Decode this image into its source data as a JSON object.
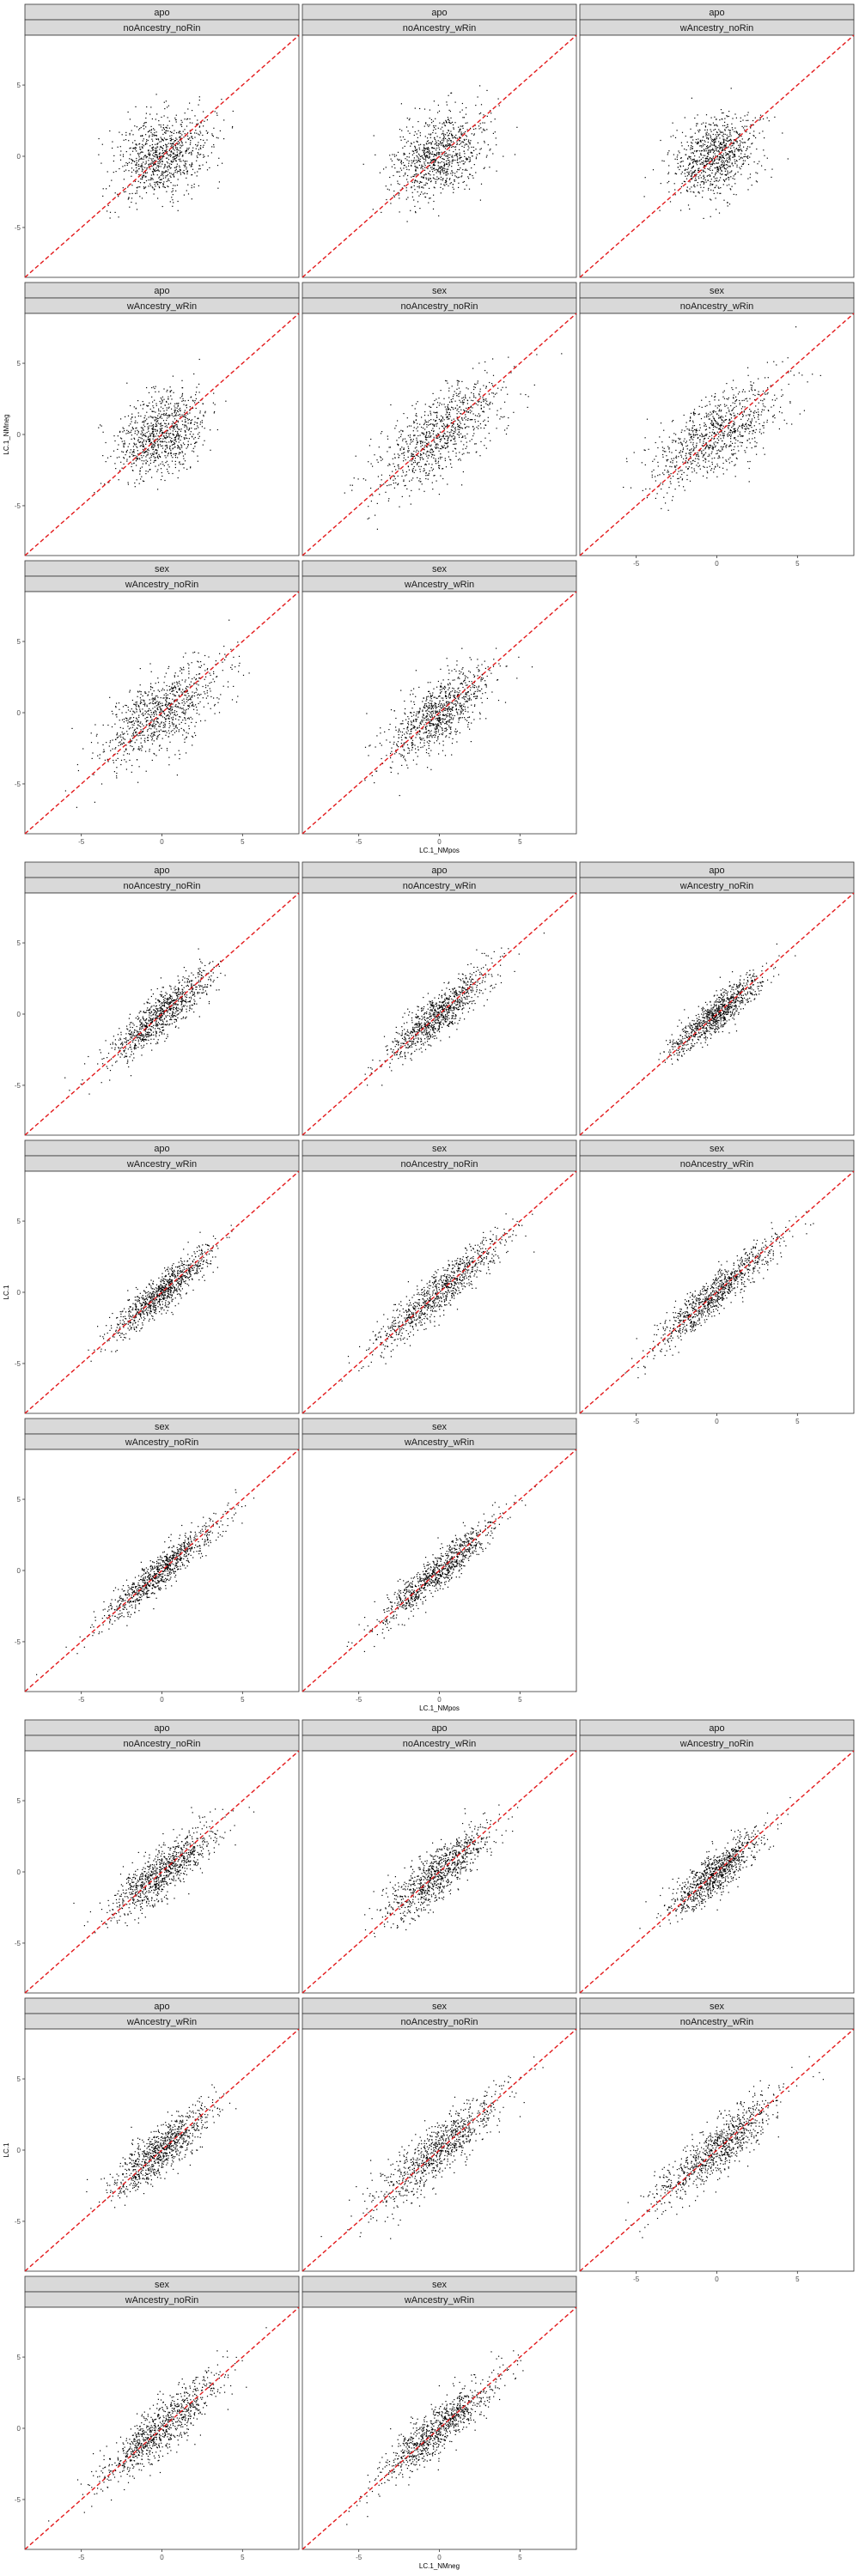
{
  "colors": {
    "strip_fill": "#d9d9d9",
    "panel_border": "#333333",
    "point": "#000000",
    "reference_line": "#e31a1c",
    "tick_text": "#4d4d4d"
  },
  "chart_data": [
    {
      "type": "scatter",
      "title": "",
      "xlabel": "LC.1_NMpos",
      "ylabel": "LC.1_NMneg",
      "xlim": [
        -8.5,
        8.5
      ],
      "ylim": [
        -8.5,
        8.5
      ],
      "x_ticks": [
        -5,
        0,
        5
      ],
      "y_ticks": [
        -5,
        0,
        5
      ],
      "reference_line": "y = x",
      "point_summary": "roughly 3000 points per panel centred at (0, 0); moderate positive correlation",
      "panels": [
        {
          "facet": "apo",
          "model": "noAncestry_noRin",
          "x_sd": 1.5,
          "y_sd": 1.5,
          "corr": 0.3
        },
        {
          "facet": "apo",
          "model": "noAncestry_wRin",
          "x_sd": 1.5,
          "y_sd": 1.6,
          "corr": 0.42
        },
        {
          "facet": "apo",
          "model": "wAncestry_noRin",
          "x_sd": 1.3,
          "y_sd": 1.4,
          "corr": 0.32
        },
        {
          "facet": "apo",
          "model": "wAncestry_wRin",
          "x_sd": 1.4,
          "y_sd": 1.5,
          "corr": 0.38
        },
        {
          "facet": "sex",
          "model": "noAncestry_noRin",
          "x_sd": 2.0,
          "y_sd": 2.0,
          "corr": 0.7
        },
        {
          "facet": "sex",
          "model": "noAncestry_wRin",
          "x_sd": 1.9,
          "y_sd": 1.8,
          "corr": 0.65
        },
        {
          "facet": "sex",
          "model": "wAncestry_noRin",
          "x_sd": 1.8,
          "y_sd": 1.8,
          "corr": 0.65
        },
        {
          "facet": "sex",
          "model": "wAncestry_wRin",
          "x_sd": 1.6,
          "y_sd": 1.7,
          "corr": 0.7
        }
      ]
    },
    {
      "type": "scatter",
      "title": "",
      "xlabel": "LC.1_NMpos",
      "ylabel": "LC.1",
      "xlim": [
        -8.5,
        8.5
      ],
      "ylim": [
        -8.5,
        8.5
      ],
      "x_ticks": [
        -5,
        0,
        5
      ],
      "y_ticks": [
        -5,
        0,
        5
      ],
      "reference_line": "y = x",
      "point_summary": "roughly 3000 points per panel centred at (0, 0); strong positive correlation",
      "panels": [
        {
          "facet": "apo",
          "model": "noAncestry_noRin",
          "x_sd": 1.6,
          "y_sd": 1.6,
          "corr": 0.88
        },
        {
          "facet": "apo",
          "model": "noAncestry_wRin",
          "x_sd": 1.6,
          "y_sd": 1.6,
          "corr": 0.88
        },
        {
          "facet": "apo",
          "model": "wAncestry_noRin",
          "x_sd": 1.4,
          "y_sd": 1.4,
          "corr": 0.9
        },
        {
          "facet": "apo",
          "model": "wAncestry_wRin",
          "x_sd": 1.5,
          "y_sd": 1.5,
          "corr": 0.9
        },
        {
          "facet": "sex",
          "model": "noAncestry_noRin",
          "x_sd": 2.0,
          "y_sd": 2.0,
          "corr": 0.93
        },
        {
          "facet": "sex",
          "model": "noAncestry_wRin",
          "x_sd": 1.9,
          "y_sd": 1.9,
          "corr": 0.93
        },
        {
          "facet": "sex",
          "model": "wAncestry_noRin",
          "x_sd": 1.9,
          "y_sd": 1.9,
          "corr": 0.94
        },
        {
          "facet": "sex",
          "model": "wAncestry_wRin",
          "x_sd": 1.8,
          "y_sd": 1.8,
          "corr": 0.94
        }
      ]
    },
    {
      "type": "scatter",
      "title": "",
      "xlabel": "LC.1_NMneg",
      "ylabel": "LC.1",
      "xlim": [
        -8.5,
        8.5
      ],
      "ylim": [
        -8.5,
        8.5
      ],
      "x_ticks": [
        -5,
        0,
        5
      ],
      "y_ticks": [
        -5,
        0,
        5
      ],
      "reference_line": "y = x",
      "point_summary": "roughly 3000 points per panel centred at (0, 0); strong positive correlation",
      "panels": [
        {
          "facet": "apo",
          "model": "noAncestry_noRin",
          "x_sd": 1.6,
          "y_sd": 1.6,
          "corr": 0.82
        },
        {
          "facet": "apo",
          "model": "noAncestry_wRin",
          "x_sd": 1.6,
          "y_sd": 1.6,
          "corr": 0.82
        },
        {
          "facet": "apo",
          "model": "wAncestry_noRin",
          "x_sd": 1.4,
          "y_sd": 1.4,
          "corr": 0.84
        },
        {
          "facet": "apo",
          "model": "wAncestry_wRin",
          "x_sd": 1.5,
          "y_sd": 1.5,
          "corr": 0.84
        },
        {
          "facet": "sex",
          "model": "noAncestry_noRin",
          "x_sd": 2.0,
          "y_sd": 2.0,
          "corr": 0.88
        },
        {
          "facet": "sex",
          "model": "noAncestry_wRin",
          "x_sd": 1.9,
          "y_sd": 1.9,
          "corr": 0.87
        },
        {
          "facet": "sex",
          "model": "wAncestry_noRin",
          "x_sd": 1.9,
          "y_sd": 1.9,
          "corr": 0.88
        },
        {
          "facet": "sex",
          "model": "wAncestry_wRin",
          "x_sd": 1.8,
          "y_sd": 1.8,
          "corr": 0.89
        }
      ]
    }
  ]
}
